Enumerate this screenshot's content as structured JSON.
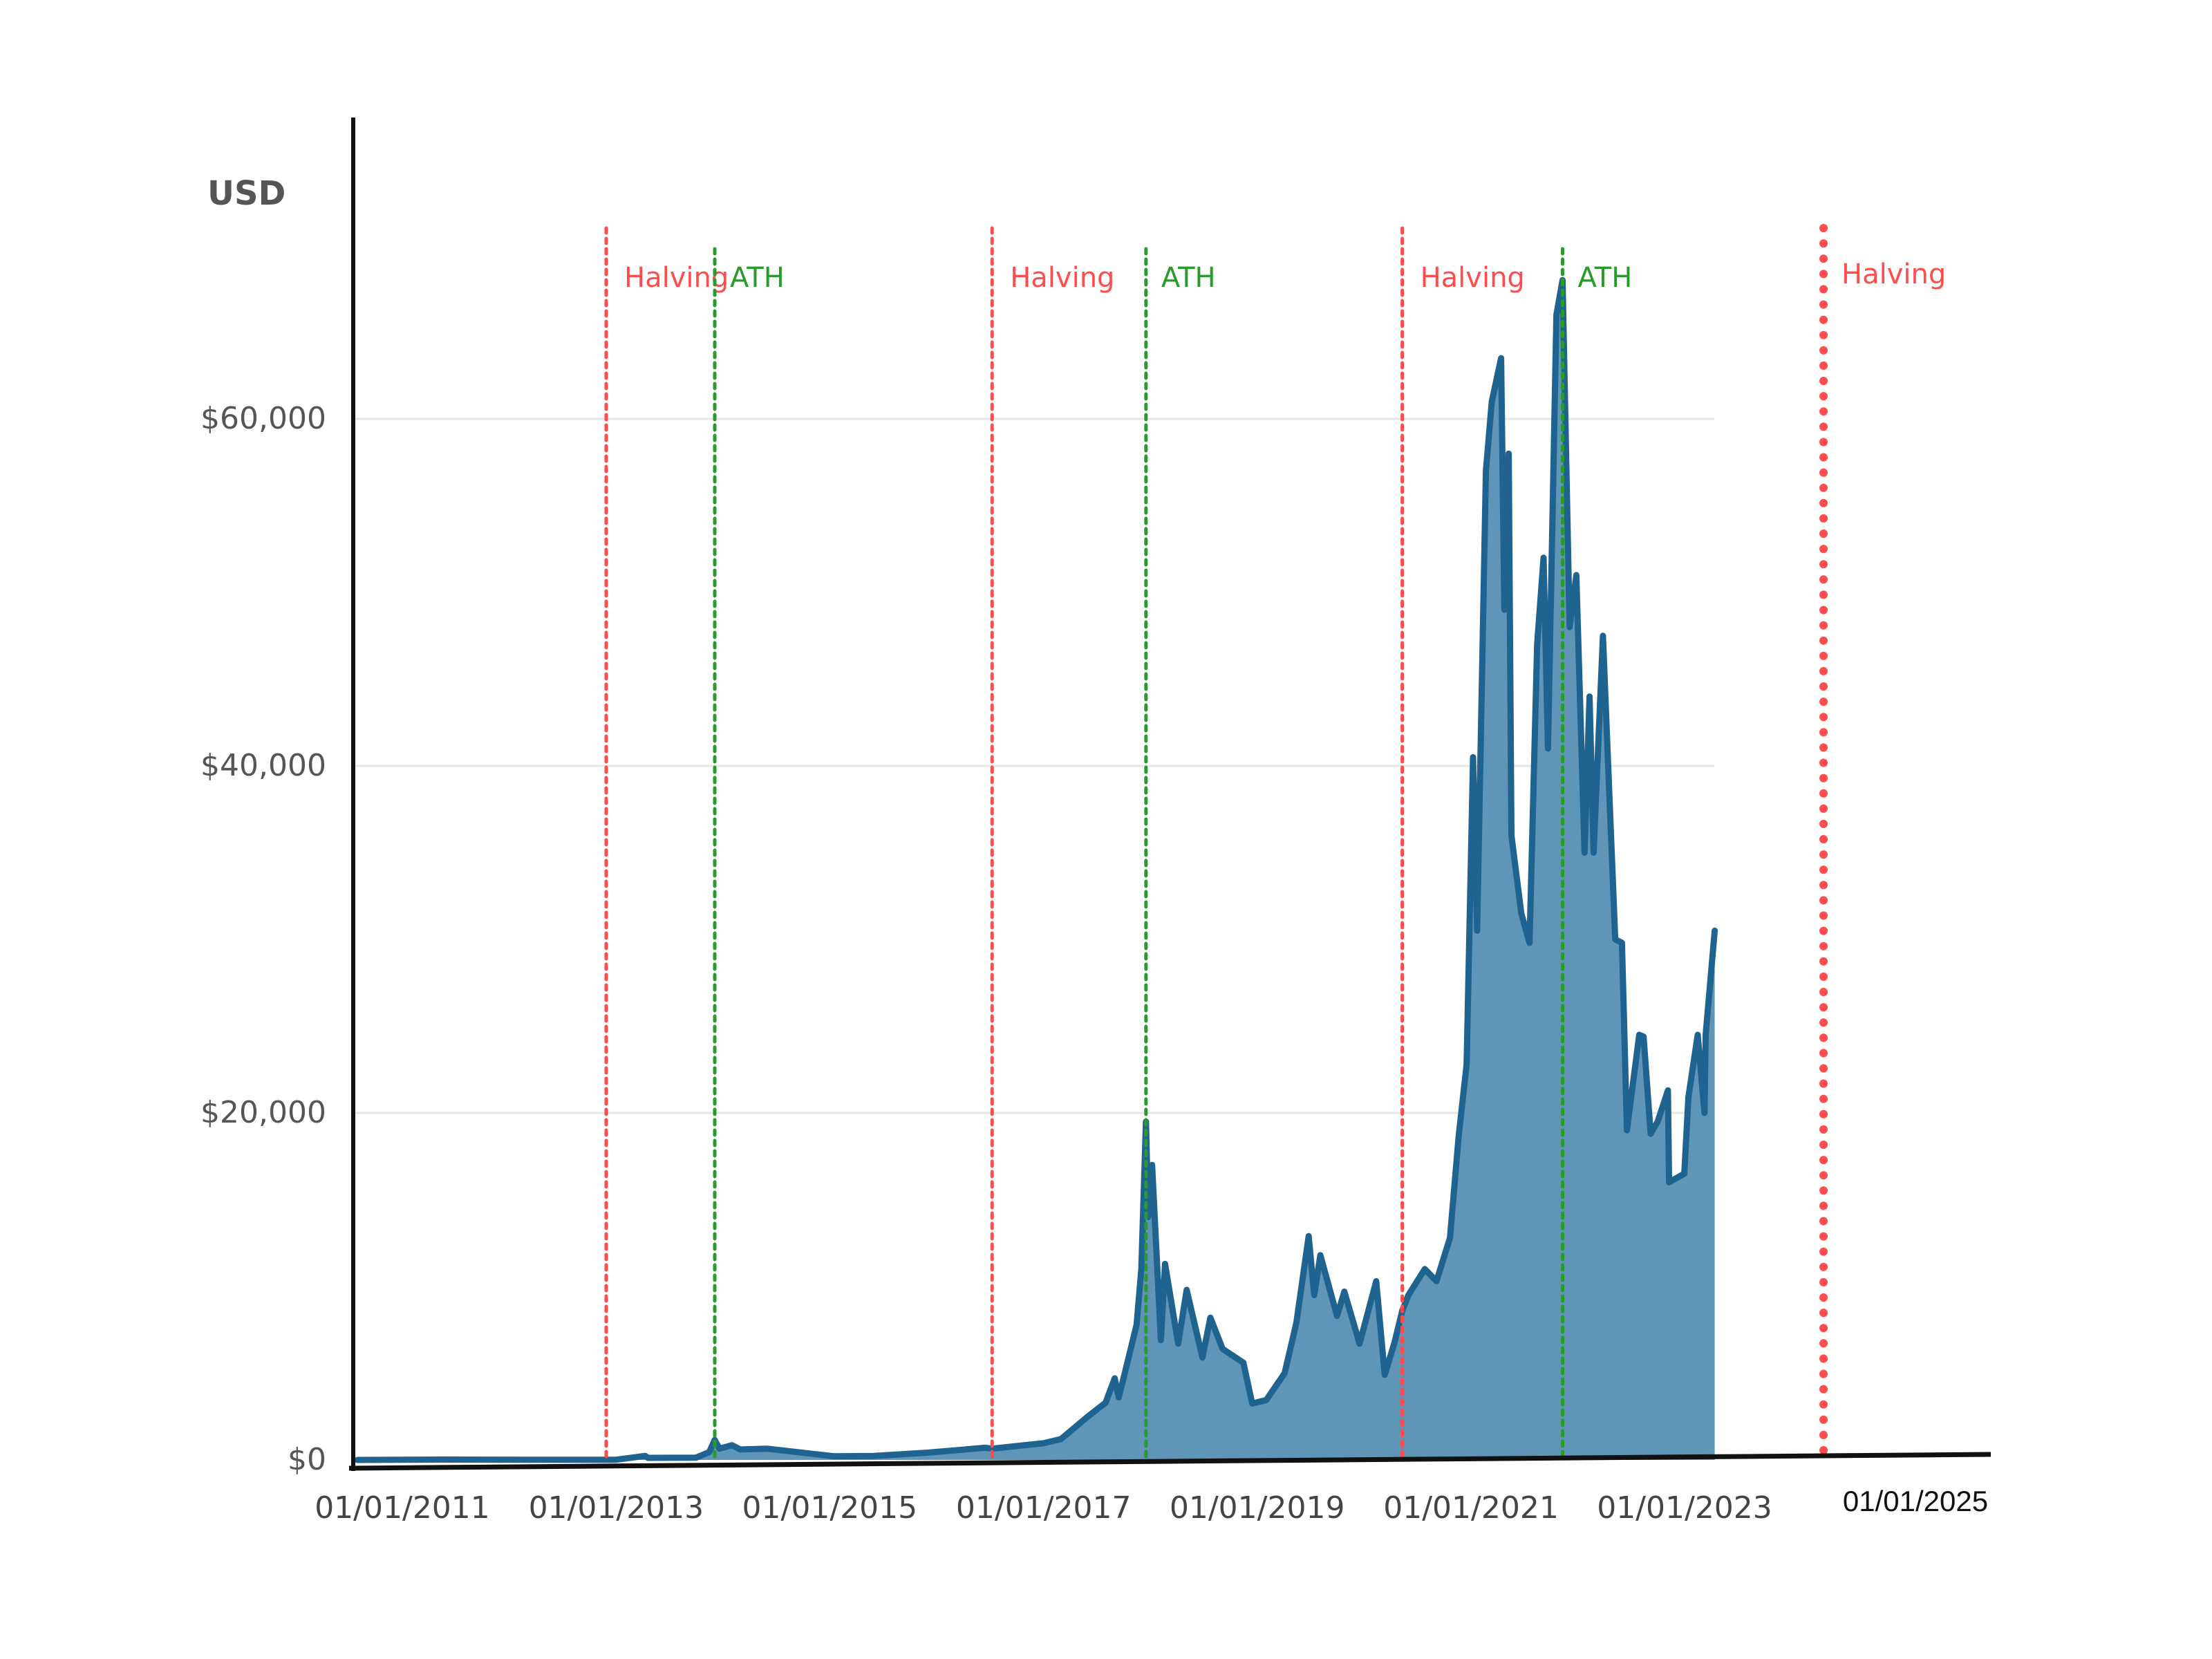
{
  "chart_data": {
    "type": "area",
    "title": "",
    "ylabel": "USD",
    "xlabel": "",
    "xlim": [
      "2010-08-01",
      "2025-03-01"
    ],
    "ylim": [
      0,
      80000
    ],
    "grid": true,
    "y_ticks": [
      {
        "value": 0,
        "label": "$0"
      },
      {
        "value": 20000,
        "label": "$20,000"
      },
      {
        "value": 40000,
        "label": "$40,000"
      },
      {
        "value": 60000,
        "label": "$60,000"
      }
    ],
    "x_ticks": [
      {
        "date": "2011-01-01",
        "label": "01/01/2011"
      },
      {
        "date": "2013-01-01",
        "label": "01/01/2013"
      },
      {
        "date": "2015-01-01",
        "label": "01/01/2015"
      },
      {
        "date": "2017-01-01",
        "label": "01/01/2017"
      },
      {
        "date": "2019-01-01",
        "label": "01/01/2019"
      },
      {
        "date": "2021-01-01",
        "label": "01/01/2021"
      },
      {
        "date": "2023-01-01",
        "label": "01/01/2023"
      },
      {
        "date": "2025-01-01",
        "label": "01/01/2025"
      }
    ],
    "events": [
      {
        "date": "2012-11-28",
        "label": "Halving",
        "kind": "halving",
        "color": "#ff4d4d"
      },
      {
        "date": "2013-12-04",
        "label": "ATH",
        "kind": "ath",
        "color": "#2a9a2a"
      },
      {
        "date": "2016-07-09",
        "label": "Halving",
        "kind": "halving",
        "color": "#ff4d4d"
      },
      {
        "date": "2017-12-17",
        "label": "ATH",
        "kind": "ath",
        "color": "#2a9a2a"
      },
      {
        "date": "2020-05-11",
        "label": "Halving",
        "kind": "halving",
        "color": "#ff4d4d"
      },
      {
        "date": "2021-11-10",
        "label": "ATH",
        "kind": "ath",
        "color": "#2a9a2a"
      },
      {
        "date": "2024-04-20",
        "label": "Halving",
        "kind": "halving",
        "color": "#ff4d4d"
      }
    ],
    "series": [
      {
        "line_color": "#1f6391",
        "fill_color": "#5f95b6",
        "points": [
          [
            "2010-08-01",
            0
          ],
          [
            "2011-06-01",
            20
          ],
          [
            "2012-06-01",
            7
          ],
          [
            "2012-11-28",
            12
          ],
          [
            "2013-01-01",
            13
          ],
          [
            "2013-04-10",
            230
          ],
          [
            "2013-04-20",
            120
          ],
          [
            "2013-10-01",
            130
          ],
          [
            "2013-11-15",
            450
          ],
          [
            "2013-12-04",
            1150
          ],
          [
            "2013-12-20",
            650
          ],
          [
            "2014-02-01",
            850
          ],
          [
            "2014-03-01",
            600
          ],
          [
            "2014-06-01",
            650
          ],
          [
            "2015-01-15",
            210
          ],
          [
            "2015-06-01",
            230
          ],
          [
            "2015-12-01",
            420
          ],
          [
            "2016-06-15",
            700
          ],
          [
            "2016-07-09",
            650
          ],
          [
            "2016-12-31",
            960
          ],
          [
            "2017-03-01",
            1200
          ],
          [
            "2017-06-01",
            2500
          ],
          [
            "2017-08-01",
            3300
          ],
          [
            "2017-09-01",
            4700
          ],
          [
            "2017-09-15",
            3600
          ],
          [
            "2017-10-20",
            6000
          ],
          [
            "2017-11-15",
            7800
          ],
          [
            "2017-12-01",
            11000
          ],
          [
            "2017-12-17",
            19500
          ],
          [
            "2017-12-25",
            14000
          ],
          [
            "2018-01-07",
            17000
          ],
          [
            "2018-02-06",
            6900
          ],
          [
            "2018-02-20",
            11300
          ],
          [
            "2018-04-06",
            6700
          ],
          [
            "2018-05-05",
            9800
          ],
          [
            "2018-06-28",
            5900
          ],
          [
            "2018-07-25",
            8200
          ],
          [
            "2018-09-05",
            6400
          ],
          [
            "2018-11-15",
            5600
          ],
          [
            "2018-12-15",
            3250
          ],
          [
            "2019-02-01",
            3450
          ],
          [
            "2019-04-05",
            5000
          ],
          [
            "2019-05-15",
            7900
          ],
          [
            "2019-06-26",
            12900
          ],
          [
            "2019-07-15",
            9500
          ],
          [
            "2019-08-05",
            11800
          ],
          [
            "2019-10-01",
            8300
          ],
          [
            "2019-10-26",
            9700
          ],
          [
            "2019-12-17",
            6700
          ],
          [
            "2020-02-12",
            10300
          ],
          [
            "2020-03-12",
            4900
          ],
          [
            "2020-04-15",
            6800
          ],
          [
            "2020-05-11",
            8600
          ],
          [
            "2020-06-01",
            9500
          ],
          [
            "2020-07-27",
            11000
          ],
          [
            "2020-09-05",
            10300
          ],
          [
            "2020-10-21",
            12800
          ],
          [
            "2020-11-20",
            18700
          ],
          [
            "2020-12-17",
            22800
          ],
          [
            "2021-01-08",
            40500
          ],
          [
            "2021-01-22",
            30500
          ],
          [
            "2021-02-21",
            57000
          ],
          [
            "2021-03-13",
            61000
          ],
          [
            "2021-04-14",
            63500
          ],
          [
            "2021-04-25",
            49000
          ],
          [
            "2021-05-10",
            58000
          ],
          [
            "2021-05-19",
            36000
          ],
          [
            "2021-06-22",
            31500
          ],
          [
            "2021-07-20",
            29800
          ],
          [
            "2021-08-15",
            47000
          ],
          [
            "2021-09-06",
            52000
          ],
          [
            "2021-09-21",
            41000
          ],
          [
            "2021-10-20",
            66000
          ],
          [
            "2021-11-10",
            68000
          ],
          [
            "2021-12-04",
            48000
          ],
          [
            "2021-12-27",
            51000
          ],
          [
            "2022-01-24",
            35000
          ],
          [
            "2022-02-10",
            44000
          ],
          [
            "2022-02-24",
            35000
          ],
          [
            "2022-03-28",
            47500
          ],
          [
            "2022-04-15",
            40000
          ],
          [
            "2022-05-09",
            30000
          ],
          [
            "2022-06-01",
            29800
          ],
          [
            "2022-06-18",
            19000
          ],
          [
            "2022-07-30",
            24500
          ],
          [
            "2022-08-14",
            24400
          ],
          [
            "2022-09-07",
            18800
          ],
          [
            "2022-10-01",
            19500
          ],
          [
            "2022-11-05",
            21300
          ],
          [
            "2022-11-09",
            16000
          ],
          [
            "2022-12-31",
            16500
          ],
          [
            "2023-01-14",
            20900
          ],
          [
            "2023-02-15",
            24500
          ],
          [
            "2023-03-10",
            20000
          ],
          [
            "2023-03-14",
            24500
          ],
          [
            "2023-04-14",
            30500
          ]
        ]
      }
    ]
  }
}
